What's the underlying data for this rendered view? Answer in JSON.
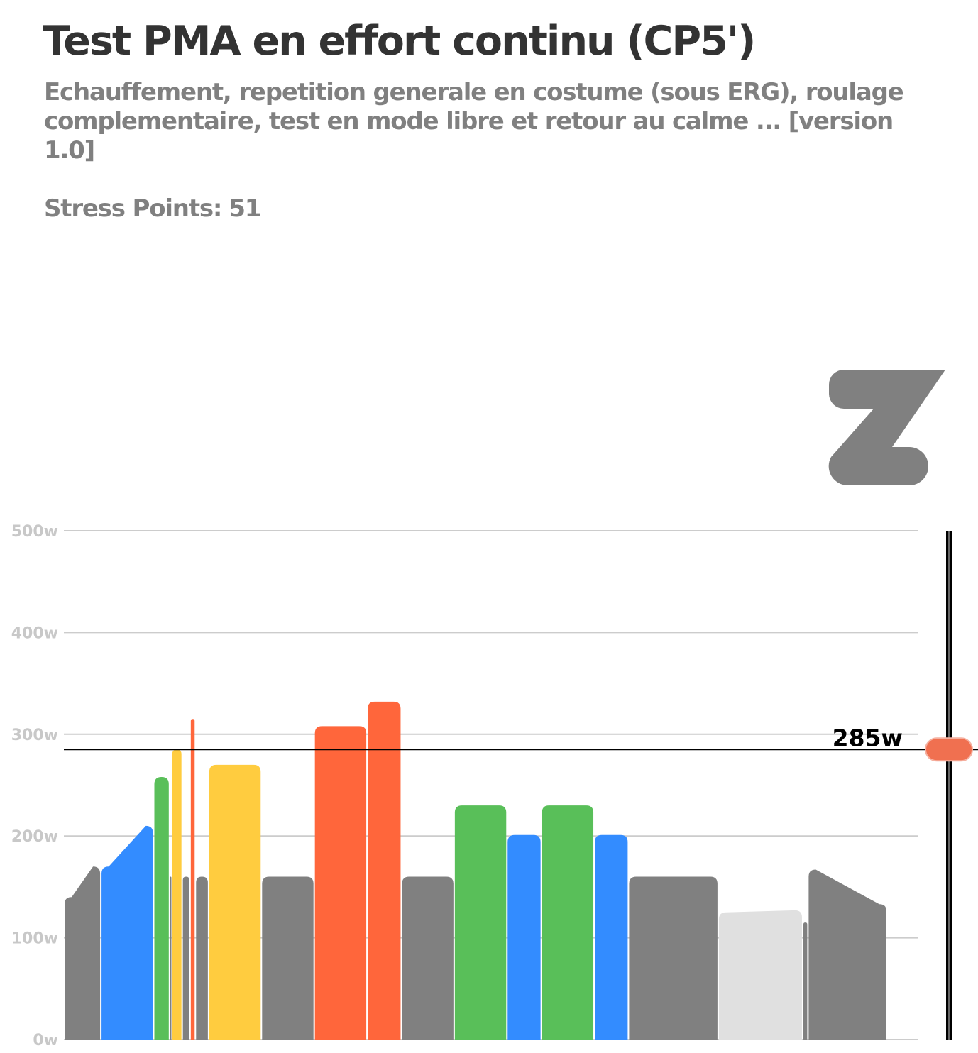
{
  "workout": {
    "title": "Test PMA en effort continu (CP5')",
    "description": "Echauffement, repetition generale en costume (sous ERG), roulage complementaire, test en mode libre et retour au calme ...  [version 1.0]",
    "stress_label": "Stress Points:",
    "stress_value": "51"
  },
  "logo": {
    "icon": "zwift-z-logo",
    "color": "#808080"
  },
  "colors": {
    "gray": "#808080",
    "blue": "#338cff",
    "green": "#59bf59",
    "yellow": "#ffcc3f",
    "orange": "#ff663b",
    "light": "#e0e0e0",
    "gridline": "#cccccc",
    "slider_handle": "#f07050"
  },
  "chart_data": {
    "type": "bar",
    "xlabel": "",
    "ylabel": "",
    "ylim": [
      0,
      500
    ],
    "yticks": [
      "0w",
      "100w",
      "200w",
      "300w",
      "400w",
      "500w"
    ],
    "ytick_values": [
      0,
      100,
      200,
      300,
      400,
      500
    ],
    "grid": true,
    "ftp_watts": 285,
    "ftp_label": "285w",
    "segments": [
      {
        "duration": 7,
        "start": 140,
        "end": 170,
        "zone": "gray"
      },
      {
        "duration": 10,
        "start": 170,
        "end": 210,
        "zone": "blue"
      },
      {
        "duration": 3,
        "start": 258,
        "end": 258,
        "zone": "green"
      },
      {
        "duration": 0.4,
        "start": 160,
        "end": 160,
        "zone": "gray"
      },
      {
        "duration": 2,
        "start": 285,
        "end": 285,
        "zone": "yellow"
      },
      {
        "duration": 1.5,
        "start": 160,
        "end": 160,
        "zone": "gray"
      },
      {
        "duration": 1,
        "start": 315,
        "end": 315,
        "zone": "orange"
      },
      {
        "duration": 2.5,
        "start": 160,
        "end": 160,
        "zone": "gray"
      },
      {
        "duration": 10,
        "start": 270,
        "end": 270,
        "zone": "yellow"
      },
      {
        "duration": 10,
        "start": 160,
        "end": 160,
        "zone": "gray"
      },
      {
        "duration": 10,
        "start": 308,
        "end": 308,
        "zone": "orange"
      },
      {
        "duration": 6.5,
        "start": 332,
        "end": 332,
        "zone": "orange"
      },
      {
        "duration": 10,
        "start": 160,
        "end": 160,
        "zone": "gray"
      },
      {
        "duration": 10,
        "start": 230,
        "end": 230,
        "zone": "green"
      },
      {
        "duration": 6.5,
        "start": 201,
        "end": 201,
        "zone": "blue"
      },
      {
        "duration": 10,
        "start": 230,
        "end": 230,
        "zone": "green"
      },
      {
        "duration": 6.5,
        "start": 201,
        "end": 201,
        "zone": "blue"
      },
      {
        "duration": 17,
        "start": 160,
        "end": 160,
        "zone": "gray"
      },
      {
        "duration": 16,
        "start": 125,
        "end": 127,
        "zone": "light"
      },
      {
        "duration": 1,
        "start": 115,
        "end": 115,
        "zone": "gray"
      },
      {
        "duration": 15,
        "start": 167,
        "end": 133,
        "zone": "gray"
      }
    ]
  }
}
